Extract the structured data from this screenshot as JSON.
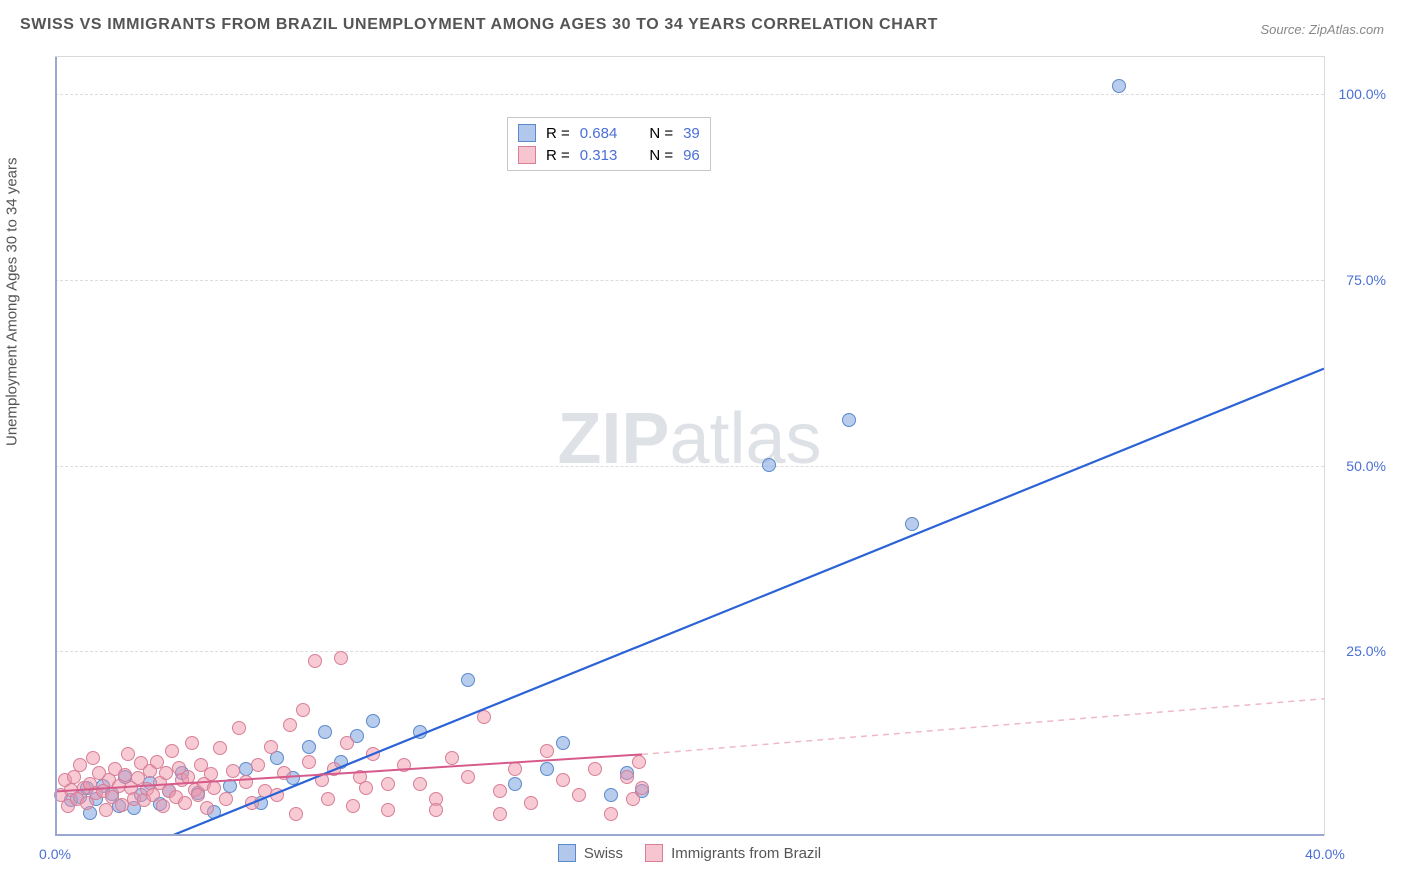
{
  "title": "SWISS VS IMMIGRANTS FROM BRAZIL UNEMPLOYMENT AMONG AGES 30 TO 34 YEARS CORRELATION CHART",
  "source": "Source: ZipAtlas.com",
  "ylabel": "Unemployment Among Ages 30 to 34 years",
  "watermark_bold": "ZIP",
  "watermark_rest": "atlas",
  "legend_top": {
    "rows": [
      {
        "swatch": "a",
        "r_label": "R =",
        "r_value": "0.684",
        "n_label": "N =",
        "n_value": "39"
      },
      {
        "swatch": "b",
        "r_label": "R =",
        "r_value": "0.313",
        "n_label": "N =",
        "n_value": "96"
      }
    ]
  },
  "legend_bottom": {
    "items": [
      {
        "swatch": "a",
        "label": "Swiss"
      },
      {
        "swatch": "b",
        "label": "Immigrants from Brazil"
      }
    ]
  },
  "chart": {
    "type": "scatter",
    "xlim": [
      0,
      40
    ],
    "ylim": [
      0,
      105
    ],
    "xticks": [
      {
        "v": 0,
        "label": "0.0%"
      },
      {
        "v": 40,
        "label": "40.0%"
      }
    ],
    "yticks": [
      {
        "v": 25,
        "label": "25.0%"
      },
      {
        "v": 50,
        "label": "50.0%"
      },
      {
        "v": 75,
        "label": "75.0%"
      },
      {
        "v": 100,
        "label": "100.0%"
      }
    ],
    "gridlines_y": [
      25,
      50,
      75,
      100
    ],
    "background_color": "#ffffff",
    "grid_color": "#dcdcdc",
    "axis_color": "#9ba7d0",
    "series": [
      {
        "name": "Swiss",
        "marker_fill": "rgba(125,163,224,0.55)",
        "marker_stroke": "#5b8acb",
        "marker_radius": 7,
        "regression": {
          "x1": 2.5,
          "y1": -2,
          "x2": 40,
          "y2": 63,
          "color": "#2b63d6",
          "width": 2.2,
          "dash": false,
          "extrapolate_from_x": null
        },
        "points": [
          [
            0.5,
            4.8
          ],
          [
            0.8,
            5.2
          ],
          [
            1.0,
            6.5
          ],
          [
            1.1,
            3.1
          ],
          [
            1.3,
            5.0
          ],
          [
            1.5,
            6.8
          ],
          [
            1.8,
            5.7
          ],
          [
            2.0,
            4.0
          ],
          [
            2.2,
            8.0
          ],
          [
            2.5,
            3.8
          ],
          [
            2.7,
            5.5
          ],
          [
            3.0,
            7.2
          ],
          [
            3.3,
            4.3
          ],
          [
            3.6,
            6.0
          ],
          [
            4.0,
            8.5
          ],
          [
            4.5,
            5.8
          ],
          [
            5.0,
            3.2
          ],
          [
            5.5,
            6.7
          ],
          [
            6.0,
            9.0
          ],
          [
            6.5,
            4.5
          ],
          [
            7.0,
            10.5
          ],
          [
            7.5,
            7.8
          ],
          [
            8.0,
            12.0
          ],
          [
            8.5,
            14.0
          ],
          [
            9.0,
            10.0
          ],
          [
            9.5,
            13.5
          ],
          [
            10.0,
            15.5
          ],
          [
            11.5,
            14.0
          ],
          [
            13.0,
            21.0
          ],
          [
            14.5,
            7.0
          ],
          [
            15.5,
            9.0
          ],
          [
            16.0,
            12.5
          ],
          [
            17.5,
            5.5
          ],
          [
            18.0,
            8.5
          ],
          [
            18.5,
            6.0
          ],
          [
            22.5,
            50.0
          ],
          [
            25.0,
            56.0
          ],
          [
            27.0,
            42.0
          ],
          [
            33.5,
            101.0
          ]
        ]
      },
      {
        "name": "Immigrants from Brazil",
        "marker_fill": "rgba(240,150,170,0.5)",
        "marker_stroke": "#d87f97",
        "marker_radius": 7,
        "regression": {
          "x1": 0,
          "y1": 6.0,
          "x2": 18.5,
          "y2": 11.0,
          "color": "#d65a8a",
          "width": 2,
          "dash": false,
          "extrapolate_from_x": 18.5,
          "extrap_x2": 40,
          "extrap_y2": 18.5,
          "extrap_color": "#eeb9c7"
        },
        "points": [
          [
            0.2,
            5.5
          ],
          [
            0.3,
            7.5
          ],
          [
            0.4,
            4.0
          ],
          [
            0.5,
            6.2
          ],
          [
            0.6,
            8.0
          ],
          [
            0.7,
            5.0
          ],
          [
            0.8,
            9.5
          ],
          [
            0.9,
            6.5
          ],
          [
            1.0,
            4.5
          ],
          [
            1.1,
            7.0
          ],
          [
            1.2,
            10.5
          ],
          [
            1.3,
            5.8
          ],
          [
            1.4,
            8.5
          ],
          [
            1.5,
            6.0
          ],
          [
            1.6,
            3.5
          ],
          [
            1.7,
            7.5
          ],
          [
            1.8,
            5.2
          ],
          [
            1.9,
            9.0
          ],
          [
            2.0,
            6.8
          ],
          [
            2.1,
            4.2
          ],
          [
            2.2,
            8.2
          ],
          [
            2.3,
            11.0
          ],
          [
            2.4,
            6.5
          ],
          [
            2.5,
            5.0
          ],
          [
            2.6,
            7.8
          ],
          [
            2.7,
            9.8
          ],
          [
            2.8,
            4.8
          ],
          [
            2.9,
            6.3
          ],
          [
            3.0,
            8.8
          ],
          [
            3.1,
            5.5
          ],
          [
            3.2,
            10.0
          ],
          [
            3.3,
            7.2
          ],
          [
            3.4,
            4.0
          ],
          [
            3.5,
            8.5
          ],
          [
            3.6,
            6.0
          ],
          [
            3.7,
            11.5
          ],
          [
            3.8,
            5.3
          ],
          [
            3.9,
            9.2
          ],
          [
            4.0,
            7.5
          ],
          [
            4.1,
            4.5
          ],
          [
            4.2,
            8.0
          ],
          [
            4.3,
            12.5
          ],
          [
            4.4,
            6.2
          ],
          [
            4.5,
            5.5
          ],
          [
            4.6,
            9.5
          ],
          [
            4.7,
            7.0
          ],
          [
            4.8,
            3.8
          ],
          [
            4.9,
            8.3
          ],
          [
            5.0,
            6.5
          ],
          [
            5.2,
            11.8
          ],
          [
            5.4,
            5.0
          ],
          [
            5.6,
            8.8
          ],
          [
            5.8,
            14.5
          ],
          [
            6.0,
            7.3
          ],
          [
            6.2,
            4.5
          ],
          [
            6.4,
            9.5
          ],
          [
            6.6,
            6.0
          ],
          [
            6.8,
            12.0
          ],
          [
            7.0,
            5.5
          ],
          [
            7.2,
            8.5
          ],
          [
            7.4,
            15.0
          ],
          [
            7.6,
            3.0
          ],
          [
            7.8,
            17.0
          ],
          [
            8.0,
            10.0
          ],
          [
            8.2,
            23.5
          ],
          [
            8.4,
            7.5
          ],
          [
            8.6,
            5.0
          ],
          [
            8.8,
            9.0
          ],
          [
            9.0,
            24.0
          ],
          [
            9.2,
            12.5
          ],
          [
            9.4,
            4.0
          ],
          [
            9.6,
            8.0
          ],
          [
            9.8,
            6.5
          ],
          [
            10.0,
            11.0
          ],
          [
            10.5,
            3.5
          ],
          [
            11.0,
            9.5
          ],
          [
            11.5,
            7.0
          ],
          [
            12.0,
            5.0
          ],
          [
            12.5,
            10.5
          ],
          [
            13.0,
            8.0
          ],
          [
            13.5,
            16.0
          ],
          [
            14.0,
            6.0
          ],
          [
            14.5,
            9.0
          ],
          [
            15.0,
            4.5
          ],
          [
            15.5,
            11.5
          ],
          [
            16.0,
            7.5
          ],
          [
            16.5,
            5.5
          ],
          [
            17.0,
            9.0
          ],
          [
            17.5,
            3.0
          ],
          [
            18.0,
            8.0
          ],
          [
            18.2,
            5.0
          ],
          [
            18.4,
            10.0
          ],
          [
            18.5,
            6.5
          ],
          [
            14.0,
            3.0
          ],
          [
            12.0,
            3.5
          ],
          [
            10.5,
            7.0
          ]
        ]
      }
    ]
  }
}
